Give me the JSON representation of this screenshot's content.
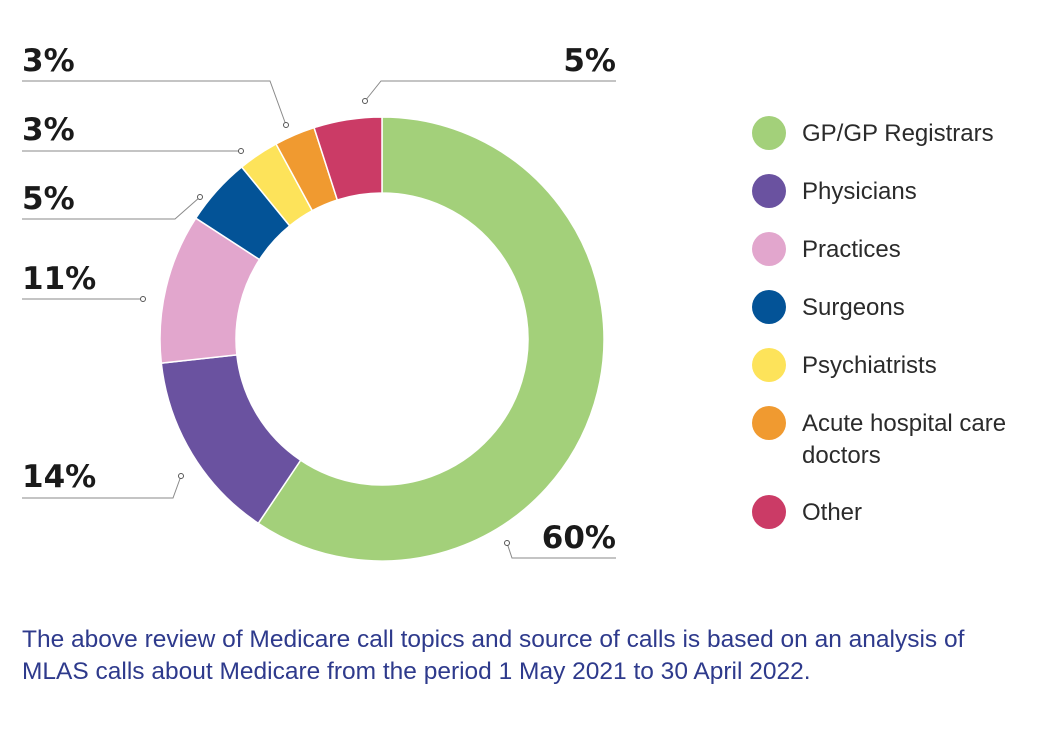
{
  "chart_data": {
    "type": "pie",
    "variant": "donut",
    "title": "",
    "categories": [
      "GP/GP Registrars",
      "Physicians",
      "Practices",
      "Surgeons",
      "Psychiatrists",
      "Acute hospital care doctors",
      "Other"
    ],
    "values": [
      60,
      14,
      11,
      5,
      3,
      3,
      5
    ],
    "value_labels": [
      "60%",
      "14%",
      "11%",
      "5%",
      "3%",
      "3%",
      "5%"
    ],
    "unit": "%",
    "colors": [
      "#a3d07a",
      "#6a52a0",
      "#e2a6cd",
      "#035397",
      "#fde35a",
      "#f09a30",
      "#cb3b66"
    ],
    "legend_position": "right"
  },
  "legend": {
    "items": [
      {
        "label": "GP/GP Registrars",
        "color": "#a3d07a"
      },
      {
        "label": "Physicians",
        "color": "#6a52a0"
      },
      {
        "label": "Practices",
        "color": "#e2a6cd"
      },
      {
        "label": "Surgeons",
        "color": "#035397"
      },
      {
        "label": "Psychiatrists",
        "color": "#fde35a"
      },
      {
        "label": "Acute hospital care doctors",
        "color": "#f09a30"
      },
      {
        "label": "Other",
        "color": "#cb3b66"
      }
    ]
  },
  "caption": "The above review of Medicare call topics and source of calls is based on an analysis of MLAS calls about Medicare from the period 1 May 2021 to 30 April 2022."
}
